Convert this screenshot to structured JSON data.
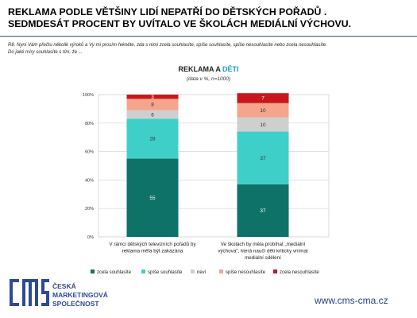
{
  "headline": {
    "line1": "REKLAMA PODLE VĚTŠINY LIDÍ NEPATŘÍ DO DĚTSKÝCH POŘADŮ .",
    "line2": "SEDMDESÁT PROCENT BY UVÍTALO VE ŠKOLÁCH MEDIÁLNÍ VÝCHOVU."
  },
  "question": {
    "line1": "R8. Nyní Vám přečtu několik výroků a Vy mi prosím řekněte, zda s nimi zcela souhlasíte, spíše souhlasíte, spíše nesouhlasíte nebo zcela nesouhlasíte.",
    "line2": "Do jaké míry souhlasíte s tím, že ..."
  },
  "footer": {
    "logo_line1": "ČESKÁ",
    "logo_line2": "MARKETINGOVÁ",
    "logo_line3": "SPOLEČNOST",
    "url": "www.cms-cma.cz"
  },
  "colors": {
    "zcela_souhlasite": "#c0302f",
    "accent": "#1a9bd8",
    "brand": "#2e4a95"
  },
  "chart_data": {
    "type": "bar",
    "stacked": true,
    "title_part1": "REKLAMA A ",
    "title_part2": "DĚTI",
    "subtitle": "(data v %, n=1000)",
    "categories": [
      [
        "V rámci dětských televizních pořadů by",
        "reklama měla být zakázána"
      ],
      [
        "Ve školách by měla probíhat „mediální",
        "výchova\", která naučí děti kriticky vnímat",
        "mediální sdělení"
      ]
    ],
    "series": [
      {
        "name": "zcela souhlasíte",
        "color": "#0e7268",
        "values": [
          55,
          37
        ]
      },
      {
        "name": "spíše souhlasíte",
        "color": "#3fcfc9",
        "values": [
          28,
          37
        ]
      },
      {
        "name": "neví",
        "color": "#cfcfcf",
        "values": [
          6,
          10
        ]
      },
      {
        "name": "spíše nesouhlasíte",
        "color": "#f4a58b",
        "values": [
          8,
          10
        ]
      },
      {
        "name": "zcela nesouhlasíte",
        "color": "#c8171c",
        "values": [
          3,
          7
        ]
      }
    ],
    "y_ticks": [
      "0%",
      "20%",
      "40%",
      "60%",
      "80%",
      "100%"
    ],
    "ylim": [
      0,
      100
    ],
    "grid": true,
    "legend_position": "bottom"
  }
}
